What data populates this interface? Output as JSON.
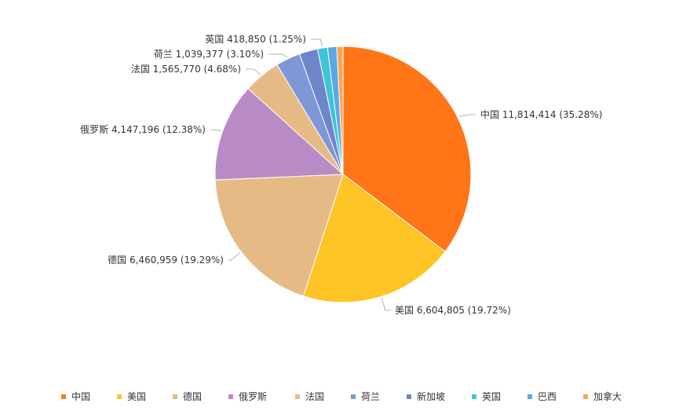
{
  "chart_data": {
    "type": "pie",
    "title": "",
    "start_angle_deg": 0,
    "direction": "clockwise",
    "legend_position": "bottom",
    "slices": [
      {
        "name": "中国",
        "value": 11814414,
        "percent": "35.28%",
        "label": "中国 11,814,414 (35.28%)",
        "color": "#FF7518",
        "labeled": true
      },
      {
        "name": "美国",
        "value": 6604805,
        "percent": "19.72%",
        "label": "美国 6,604,805 (19.72%)",
        "color": "#FFC425",
        "labeled": true
      },
      {
        "name": "德国",
        "value": 6460959,
        "percent": "19.29%",
        "label": "德国 6,460,959 (19.29%)",
        "color": "#E6BA84",
        "labeled": true
      },
      {
        "name": "俄罗斯",
        "value": 4147196,
        "percent": "12.38%",
        "label": "俄罗斯 4,147,196 (12.38%)",
        "color": "#B98BC6",
        "labeled": true
      },
      {
        "name": "法国",
        "value": 1565770,
        "percent": "4.68%",
        "label": "法国 1,565,770 (4.68%)",
        "color": "#E6BA84",
        "labeled": true
      },
      {
        "name": "荷兰",
        "value": 1039377,
        "percent": "3.10%",
        "label": "荷兰 1,039,377 (3.10%)",
        "color": "#7F97D6",
        "labeled": true
      },
      {
        "name": "新加坡",
        "value": 780000,
        "percent": "",
        "label": "",
        "color": "#6E86C9",
        "labeled": false
      },
      {
        "name": "英国",
        "value": 418850,
        "percent": "1.25%",
        "label": "英国 418,850 (1.25%)",
        "color": "#3EC4D9",
        "labeled": true
      },
      {
        "name": "巴西",
        "value": 390000,
        "percent": "",
        "label": "",
        "color": "#5BA8E6",
        "labeled": false
      },
      {
        "name": "加拿大",
        "value": 260000,
        "percent": "",
        "label": "",
        "color": "#F2A65A",
        "labeled": false
      }
    ],
    "legend": [
      "中国",
      "美国",
      "德国",
      "俄罗斯",
      "法国",
      "荷兰",
      "新加坡",
      "英国",
      "巴西",
      "加拿大"
    ]
  }
}
